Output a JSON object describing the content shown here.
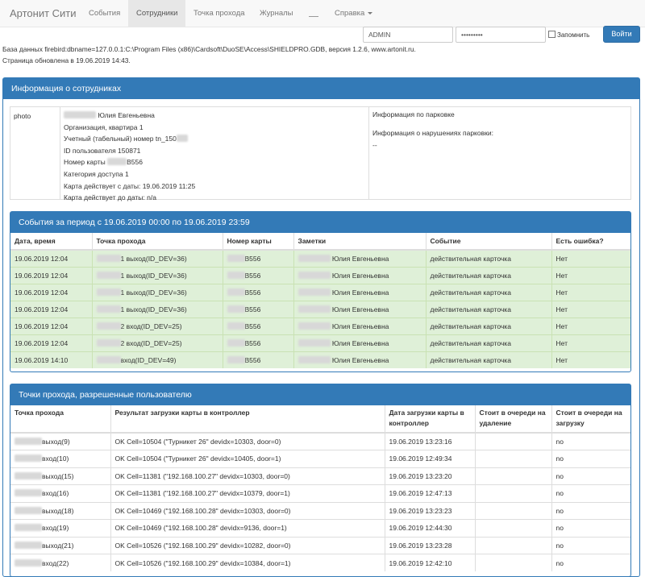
{
  "navbar": {
    "brand": "Артонит Сити",
    "items": [
      {
        "label": "События"
      },
      {
        "label": "Сотрудники"
      },
      {
        "label": "Точка прохода"
      },
      {
        "label": "Журналы"
      },
      {
        "label": "Справка"
      }
    ],
    "login_value": "ADMIN",
    "password_value": "•••••••••",
    "remember_label": "Запомнить",
    "login_button": "Войти"
  },
  "info": {
    "database_line": "База данных firebird:dbname=127.0.0.1:C:\\Program Files (x86)\\Cardsoft\\DuoSE\\Access\\SHIELDPRO.GDB, версия 1.2.6, www.artonit.ru.",
    "updated_line": "Страница обновлена в 19.06.2019 14:43."
  },
  "employee_panel": {
    "title": "Информация о сотрудниках",
    "photo_label": "photo",
    "name": "Юлия Евгеньевна",
    "organization": "Организация, квартира 1",
    "tab_number": "Учетный (табельный) номер tn_150",
    "user_id": "ID пользователя 150871",
    "card_number": "Номер карты",
    "card_suffix": "B556",
    "access_category": "Категория доступа 1",
    "valid_from": "Карта действует с даты: 19.06.2019 11:25",
    "valid_to": "Карта действует до даты: n/a",
    "parking_info": "Информация по парковке",
    "parking_violations": "Информация о нарушениях парковки:",
    "parking_violations_value": "--"
  },
  "events_panel": {
    "title": "События за период с 19.06.2019 00:00 по 19.06.2019 23:59",
    "columns": [
      "Дата, время",
      "Точка прохода",
      "Номер карты",
      "Заметки",
      "Событие",
      "Есть ошибка?"
    ],
    "rows": [
      {
        "datetime": "19.06.2019 12:04",
        "point": "1 выход(ID_DEV=36)",
        "card": "B556",
        "note": "Юлия Евгеньевна",
        "event": "действительная карточка",
        "error": "Нет"
      },
      {
        "datetime": "19.06.2019 12:04",
        "point": "1 выход(ID_DEV=36)",
        "card": "B556",
        "note": "Юлия Евгеньевна",
        "event": "действительная карточка",
        "error": "Нет"
      },
      {
        "datetime": "19.06.2019 12:04",
        "point": "1 выход(ID_DEV=36)",
        "card": "B556",
        "note": "Юлия Евгеньевна",
        "event": "действительная карточка",
        "error": "Нет"
      },
      {
        "datetime": "19.06.2019 12:04",
        "point": "1 выход(ID_DEV=36)",
        "card": "B556",
        "note": "Юлия Евгеньевна",
        "event": "действительная карточка",
        "error": "Нет"
      },
      {
        "datetime": "19.06.2019 12:04",
        "point": "2 вход(ID_DEV=25)",
        "card": "B556",
        "note": "Юлия Евгеньевна",
        "event": "действительная карточка",
        "error": "Нет"
      },
      {
        "datetime": "19.06.2019 12:04",
        "point": "2 вход(ID_DEV=25)",
        "card": "B556",
        "note": "Юлия Евгеньевна",
        "event": "действительная карточка",
        "error": "Нет"
      },
      {
        "datetime": "19.06.2019 14:10",
        "point": "вход(ID_DEV=49)",
        "card": "B556",
        "note": "Юлия Евгеньевна",
        "event": "действительная карточка",
        "error": "Нет"
      }
    ]
  },
  "points_panel": {
    "title": "Точки прохода, разрешенные пользователю",
    "columns": [
      "Точка прохода",
      "Результат загрузки карты в контроллер",
      "Дата загрузки карты в контроллер",
      "Стоит в очереди на удаление",
      "Стоит в очереди на загрузку"
    ],
    "rows": [
      {
        "point": "выход(9)",
        "result": "OK Cell=10504 (\"Турникет 26\" devidx=10303, door=0)",
        "date": "19.06.2019 13:23:16",
        "del_queue": "",
        "load_queue": "no"
      },
      {
        "point": "вход(10)",
        "result": "OK Cell=10504 (\"Турникет 26\" devidx=10405, door=1)",
        "date": "19.06.2019 12:49:34",
        "del_queue": "",
        "load_queue": "no"
      },
      {
        "point": "выход(15)",
        "result": "OK Cell=11381 (\"192.168.100.27\" devidx=10303, door=0)",
        "date": "19.06.2019 13:23:20",
        "del_queue": "",
        "load_queue": "no"
      },
      {
        "point": "вход(16)",
        "result": "OK Cell=11381 (\"192.168.100.27\" devidx=10379, door=1)",
        "date": "19.06.2019 12:47:13",
        "del_queue": "",
        "load_queue": "no"
      },
      {
        "point": "выход(18)",
        "result": "OK Cell=10469 (\"192.168.100.28\" devidx=10303, door=0)",
        "date": "19.06.2019 13:23:23",
        "del_queue": "",
        "load_queue": "no"
      },
      {
        "point": "вход(19)",
        "result": "OK Cell=10469 (\"192.168.100.28\" devidx=9136, door=1)",
        "date": "19.06.2019 12:44:30",
        "del_queue": "",
        "load_queue": "no"
      },
      {
        "point": "выход(21)",
        "result": "OK Cell=10526 (\"192.168.100.29\" devidx=10282, door=0)",
        "date": "19.06.2019 13:23:28",
        "del_queue": "",
        "load_queue": "no"
      },
      {
        "point": "вход(22)",
        "result": "OK Cell=10526 (\"192.168.100.29\" devidx=10384, door=1)",
        "date": "19.06.2019 12:42:10",
        "del_queue": "",
        "load_queue": "no"
      }
    ]
  },
  "colors": {
    "primary": "#337ab7",
    "success_row": "#dff0d8",
    "navbar_bg": "#f8f8f8"
  }
}
